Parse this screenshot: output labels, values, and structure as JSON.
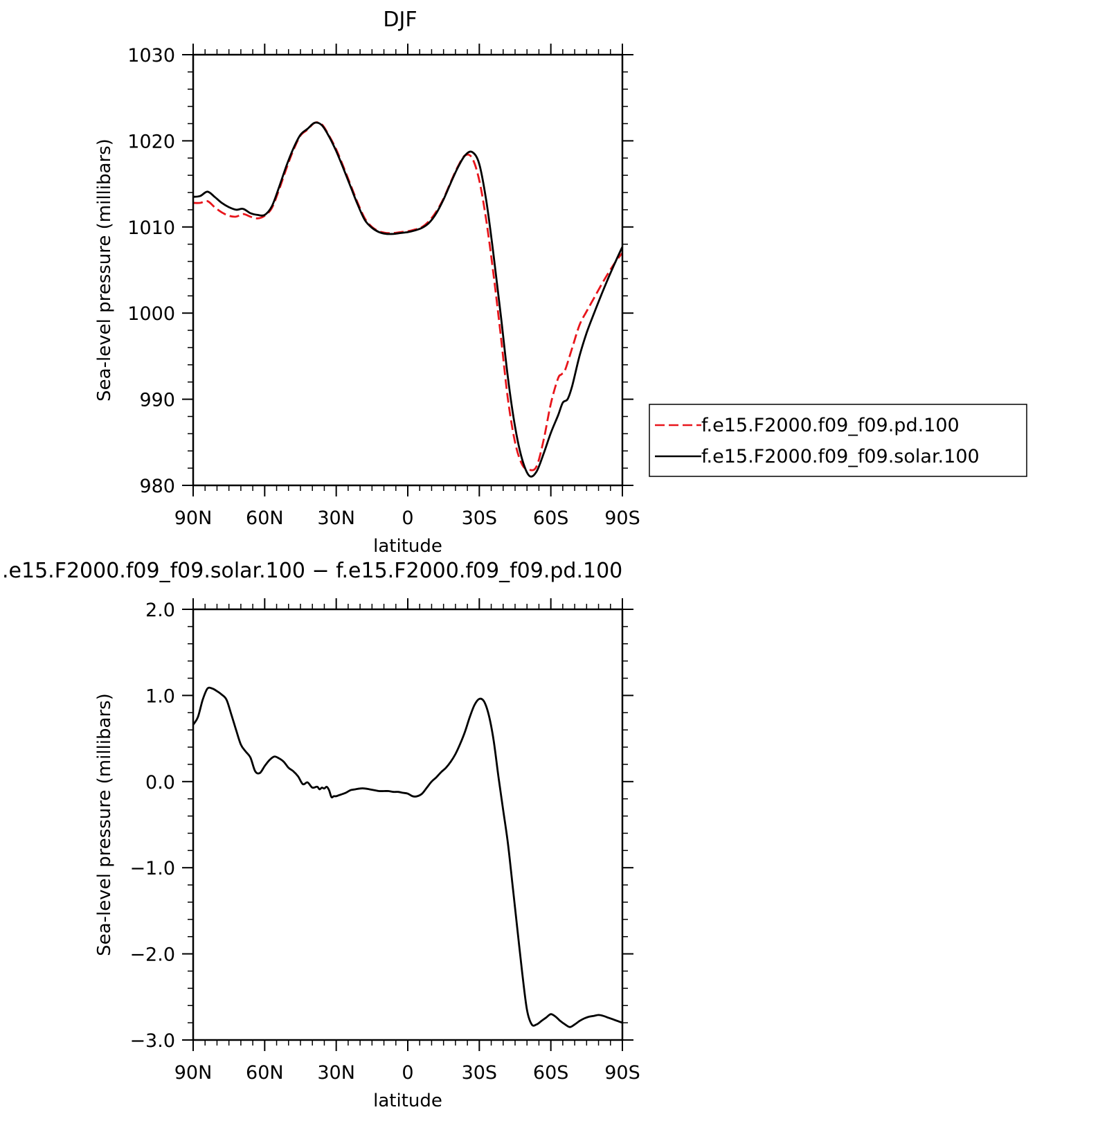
{
  "chart_data": [
    {
      "type": "line",
      "title": "DJF",
      "xlabel": "latitude",
      "ylabel": "Sea-level pressure (millibars)",
      "x_ticks": [
        {
          "x": -90,
          "label": "90N"
        },
        {
          "x": -60,
          "label": "60N"
        },
        {
          "x": -30,
          "label": "30N"
        },
        {
          "x": 0,
          "label": "0"
        },
        {
          "x": 30,
          "label": "30S"
        },
        {
          "x": 60,
          "label": "60S"
        },
        {
          "x": 90,
          "label": "90S"
        }
      ],
      "y_ticks": [
        {
          "y": 980,
          "label": "980"
        },
        {
          "y": 990,
          "label": "990"
        },
        {
          "y": 1000,
          "label": "1000"
        },
        {
          "y": 1010,
          "label": "1010"
        },
        {
          "y": 1020,
          "label": "1020"
        },
        {
          "y": 1030,
          "label": "1030"
        }
      ],
      "xlim": [
        -90,
        90
      ],
      "ylim": [
        980,
        1030
      ],
      "legend_position": "right",
      "series": [
        {
          "name": "f.e15.F2000.f09_f09.pd.100",
          "color": "#e8151b",
          "dash": "dashed",
          "x": [
            -90,
            -87,
            -84,
            -81,
            -78,
            -75,
            -72,
            -69,
            -66,
            -63,
            -60,
            -57,
            -54,
            -51,
            -48,
            -45,
            -42,
            -39,
            -36,
            -33,
            -30,
            -27,
            -24,
            -21,
            -18,
            -15,
            -12,
            -9,
            -6,
            -3,
            0,
            3,
            6,
            9,
            12,
            15,
            18,
            21,
            24,
            27,
            30,
            33,
            36,
            39,
            42,
            45,
            48,
            51,
            54,
            57,
            60,
            63,
            64.5,
            66,
            69,
            72,
            75,
            78,
            81,
            84,
            87,
            90
          ],
          "y": [
            1012.8,
            1012.8,
            1013.0,
            1012.3,
            1011.7,
            1011.3,
            1011.2,
            1011.5,
            1011.2,
            1011.0,
            1011.3,
            1012.2,
            1014.3,
            1016.7,
            1018.9,
            1020.6,
            1021.3,
            1022.1,
            1021.9,
            1020.6,
            1019.0,
            1017.0,
            1014.9,
            1012.8,
            1011.0,
            1010.0,
            1009.5,
            1009.3,
            1009.3,
            1009.4,
            1009.5,
            1009.7,
            1010.0,
            1010.7,
            1011.8,
            1013.3,
            1015.2,
            1017.0,
            1018.3,
            1018.0,
            1015.4,
            1010.6,
            1004.4,
            997.4,
            990.0,
            985.0,
            982.4,
            981.8,
            982.2,
            985.3,
            989.5,
            992.4,
            992.9,
            993.4,
            996.0,
            998.6,
            1000.2,
            1001.7,
            1003.2,
            1004.6,
            1005.9,
            1007.0
          ],
          "visible_x_max": 90
        },
        {
          "name": "f.e15.F2000.f09_f09.solar.100",
          "color": "#000000",
          "dash": "solid",
          "x": [
            -90,
            -87,
            -84,
            -81,
            -78,
            -75,
            -72,
            -69,
            -66,
            -63,
            -60,
            -57,
            -54,
            -51,
            -48,
            -45,
            -42,
            -39,
            -36,
            -33,
            -30,
            -27,
            -24,
            -21,
            -18,
            -15,
            -12,
            -9,
            -6,
            -3,
            0,
            3,
            6,
            9,
            12,
            15,
            18,
            21,
            24,
            27,
            30,
            33,
            36,
            39,
            42,
            45,
            48,
            51,
            54,
            57,
            60,
            63,
            65,
            67,
            69,
            72,
            75,
            78,
            81,
            84,
            87,
            90
          ],
          "y": [
            1013.5,
            1013.6,
            1014.1,
            1013.5,
            1012.8,
            1012.3,
            1012.0,
            1012.1,
            1011.6,
            1011.4,
            1011.4,
            1012.4,
            1014.6,
            1017.0,
            1019.1,
            1020.7,
            1021.4,
            1022.1,
            1021.8,
            1020.5,
            1018.8,
            1016.8,
            1014.7,
            1012.6,
            1010.8,
            1009.9,
            1009.4,
            1009.2,
            1009.2,
            1009.3,
            1009.4,
            1009.6,
            1009.9,
            1010.5,
            1011.6,
            1013.2,
            1015.1,
            1016.9,
            1018.3,
            1018.7,
            1017.3,
            1012.9,
            1006.7,
            999.8,
            992.5,
            986.8,
            983.0,
            981.1,
            981.6,
            983.7,
            986.1,
            988.1,
            989.6,
            990.0,
            991.6,
            995.0,
            997.7,
            999.9,
            1002.0,
            1004.0,
            1005.9,
            1007.7
          ],
          "visible_x_max": 90
        }
      ]
    },
    {
      "type": "line",
      "title": ".e15.F2000.f09_f09.solar.100 − f.e15.F2000.f09_f09.pd.100",
      "xlabel": "latitude",
      "ylabel": "Sea-level pressure (millibars)",
      "x_ticks": [
        {
          "x": -90,
          "label": "90N"
        },
        {
          "x": -60,
          "label": "60N"
        },
        {
          "x": -30,
          "label": "30N"
        },
        {
          "x": 0,
          "label": "0"
        },
        {
          "x": 30,
          "label": "30S"
        },
        {
          "x": 60,
          "label": "60S"
        },
        {
          "x": 90,
          "label": "90S"
        }
      ],
      "y_ticks": [
        {
          "y": -3.0,
          "label": "−3.0"
        },
        {
          "y": -2.0,
          "label": "−2.0"
        },
        {
          "y": -1.0,
          "label": "−1.0"
        },
        {
          "y": 0.0,
          "label": "0.0"
        },
        {
          "y": 1.0,
          "label": "1.0"
        },
        {
          "y": 2.0,
          "label": "2.0"
        }
      ],
      "xlim": [
        -90,
        90
      ],
      "ylim": [
        -3.0,
        2.0
      ],
      "series": [
        {
          "color": "#000000",
          "dash": "solid",
          "x": [
            -90,
            -88,
            -86,
            -84,
            -82,
            -80,
            -78,
            -76,
            -74,
            -72,
            -70,
            -68,
            -66,
            -64,
            -62,
            -60,
            -58,
            -56,
            -54,
            -52,
            -50,
            -48,
            -46,
            -44,
            -42,
            -40,
            -38,
            -37,
            -36,
            -35,
            -34,
            -33,
            -32,
            -31,
            -30,
            -29,
            -28,
            -26,
            -24,
            -22,
            -20,
            -18,
            -16,
            -14,
            -12,
            -10,
            -8,
            -6,
            -4,
            -2,
            0,
            2,
            4,
            6,
            8,
            10,
            12,
            14,
            16,
            18,
            20,
            22,
            24,
            26,
            28,
            30,
            32,
            34,
            36,
            38,
            40,
            42,
            44,
            46,
            48,
            50,
            52,
            54,
            56,
            58,
            60,
            62,
            64,
            66,
            68,
            70,
            72,
            74,
            76,
            78,
            80,
            82,
            84,
            86,
            88,
            90
          ],
          "y": [
            0.66,
            0.75,
            0.95,
            1.08,
            1.08,
            1.05,
            1.01,
            0.95,
            0.78,
            0.6,
            0.43,
            0.35,
            0.28,
            0.12,
            0.1,
            0.18,
            0.25,
            0.29,
            0.27,
            0.23,
            0.16,
            0.12,
            0.06,
            -0.03,
            -0.01,
            -0.07,
            -0.06,
            -0.09,
            -0.07,
            -0.08,
            -0.06,
            -0.1,
            -0.18,
            -0.17,
            -0.17,
            -0.16,
            -0.15,
            -0.13,
            -0.1,
            -0.09,
            -0.08,
            -0.08,
            -0.09,
            -0.1,
            -0.11,
            -0.11,
            -0.11,
            -0.12,
            -0.12,
            -0.13,
            -0.14,
            -0.17,
            -0.17,
            -0.14,
            -0.07,
            0.0,
            0.05,
            0.11,
            0.16,
            0.23,
            0.32,
            0.44,
            0.58,
            0.75,
            0.89,
            0.96,
            0.93,
            0.77,
            0.48,
            0.06,
            -0.33,
            -0.72,
            -1.22,
            -1.72,
            -2.22,
            -2.65,
            -2.82,
            -2.82,
            -2.78,
            -2.74,
            -2.7,
            -2.73,
            -2.78,
            -2.82,
            -2.85,
            -2.82,
            -2.78,
            -2.75,
            -2.73,
            -2.72,
            -2.71,
            -2.72,
            -2.74,
            -2.76,
            -2.78,
            -2.8
          ],
          "visible_x_max": 90
        }
      ]
    }
  ]
}
